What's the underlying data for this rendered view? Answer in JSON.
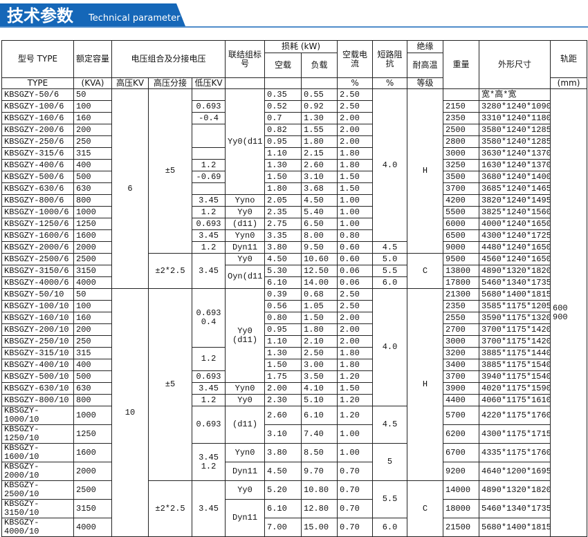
{
  "banner": {
    "title": "技术参数",
    "subtitle": "Technical parameter"
  },
  "table": {
    "header": {
      "type": "型号 TYPE",
      "capacity": "额定容量",
      "voltage": "电压组合及分接电压",
      "group": "联结组标号",
      "loss": "损耗 (kW)",
      "current": "空载电流",
      "impedance": "短路阻抗",
      "insulation": "绝缘",
      "weight": "重量",
      "dims": "外形尺寸",
      "gauge": "轨距",
      "noload": "空载",
      "load": "负载",
      "heat": "耐高温",
      "type2": "TYPE",
      "kva": "(KVA)",
      "hv": "高压KV",
      "tap": "高压分接",
      "lv": "低压KV",
      "pct1": "%",
      "pct2": "%",
      "grade": "等级",
      "mm": "(mm)"
    },
    "rows": [
      [
        "KBSGZY-50/6",
        "50",
        "0.35",
        "0.55",
        "2.50",
        null,
        "宽*高*宽"
      ],
      [
        "KBSGZY-100/6",
        "100",
        "0.52",
        "0.92",
        "2.50",
        "2150",
        "3280*1240*1090"
      ],
      [
        "KBSGZY-160/6",
        "160",
        "0.7",
        "1.30",
        "2.00",
        "2350",
        "3310*1240*1180"
      ],
      [
        "KBSGZY-200/6",
        "200",
        "0.82",
        "1.55",
        "2.00",
        "2500",
        "3580*1240*1285"
      ],
      [
        "KBSGZY-250/6",
        "250",
        "0.95",
        "1.80",
        "2.00",
        "2800",
        "3580*1240*1285"
      ],
      [
        "KBSGZY-315/6",
        "315",
        "1.10",
        "2.15",
        "1.80",
        "3000",
        "3630*1240*1370"
      ],
      [
        "KBSGZY-400/6",
        "400",
        "1.30",
        "2.60",
        "1.80",
        "3250",
        "1630*1240*1370"
      ],
      [
        "KBSGZY-500/6",
        "500",
        "1.50",
        "3.10",
        "1.50",
        "3500",
        "3680*1240*1400"
      ],
      [
        "KBSGZY-630/6",
        "630",
        "1.80",
        "3.68",
        "1.50",
        "3700",
        "3685*1240*1465"
      ],
      [
        "KBSGZY-800/6",
        "800",
        "2.05",
        "4.50",
        "1.00",
        "4200",
        "3820*1240*1495"
      ],
      [
        "KBSGZY-1000/6",
        "1000",
        "2.35",
        "5.40",
        "1.00",
        "5500",
        "3825*1240*1560"
      ],
      [
        "KBSGZY-1250/6",
        "1250",
        "2.75",
        "6.50",
        "1.00",
        "6000",
        "4000*1240*1650"
      ],
      [
        "KBSGZY-1600/6",
        "1600",
        "3.35",
        "8.00",
        "0.80",
        "6500",
        "4300*1240*1725"
      ],
      [
        "KBSGZY-2000/6",
        "2000",
        "3.80",
        "9.50",
        "0.60",
        "9000",
        "4480*1240*1650"
      ],
      [
        "KBSGZY-2500/6",
        "2500",
        "4.50",
        "10.60",
        "0.60",
        "9500",
        "4560*1240*1650"
      ],
      [
        "KBSGZY-3150/6",
        "3150",
        "5.30",
        "12.50",
        "0.06",
        "13800",
        "4890*1320*1820"
      ],
      [
        "KBSGZY-4000/6",
        "4000",
        "6.10",
        "14.00",
        "0.06",
        "17800",
        "5460*1340*1735"
      ],
      [
        "KBSGZY-50/10",
        "50",
        "0.39",
        "0.68",
        "2.50",
        "21300",
        "5680*1400*1815"
      ],
      [
        "KBSGZY-100/10",
        "100",
        "0.56",
        "1.05",
        "2.50",
        "2350",
        "3585*1175*1205"
      ],
      [
        "KBSGZY-160/10",
        "160",
        "0.80",
        "1.50",
        "2.00",
        "2550",
        "3590*1175*1320"
      ],
      [
        "KBSGZY-200/10",
        "200",
        "0.95",
        "1.80",
        "2.00",
        "2700",
        "3700*1175*1420"
      ],
      [
        "KBSGZY-250/10",
        "250",
        "1.10",
        "2.10",
        "2.00",
        "3000",
        "3700*1175*1420"
      ],
      [
        "KBSGZY-315/10",
        "315",
        "1.30",
        "2.50",
        "1.80",
        "3200",
        "3885*1175*1440"
      ],
      [
        "KBSGZY-400/10",
        "400",
        "1.50",
        "3.00",
        "1.80",
        "3400",
        "3885*1175*1540"
      ],
      [
        "KBSGZY-500/10",
        "500",
        "1.75",
        "3.50",
        "1.20",
        "3700",
        "3940*1175*1540"
      ],
      [
        "KBSGZY-630/10",
        "630",
        "2.00",
        "4.10",
        "1.50",
        "3900",
        "4020*1175*1590"
      ],
      [
        "KBSGZY-800/10",
        "800",
        "2.30",
        "5.10",
        "1.20",
        "4400",
        "4060*1175*1610"
      ],
      [
        "KBSGZY-1000/10",
        "1000",
        "2.60",
        "6.10",
        "1.20",
        "5700",
        "4220*1175*1760"
      ],
      [
        "KBSGZY-1250/10",
        "1250",
        "3.10",
        "7.40",
        "1.00",
        "6200",
        "4300*1175*1715"
      ],
      [
        "KBSGZY-1600/10",
        "1600",
        "3.80",
        "8.50",
        "1.00",
        "6700",
        "4335*1175*1760"
      ],
      [
        "KBSGZY-2000/10",
        "2000",
        "4.50",
        "9.70",
        "0.70",
        "9200",
        "4640*1200*1695"
      ],
      [
        "KBSGZY-2500/10",
        "2500",
        "5.20",
        "10.80",
        "0.70",
        "14000",
        "4890*1320*1820"
      ],
      [
        "KBSGZY-3150/10",
        "3150",
        "6.10",
        "12.80",
        "0.70",
        "18000",
        "5460*1340*1735"
      ],
      [
        "KBSGZY-4000/10",
        "4000",
        "7.00",
        "15.00",
        "0.70",
        "21500",
        "5680*1400*1815"
      ]
    ],
    "hv": [
      "6",
      "10"
    ],
    "tap": [
      "±5",
      "±2*2.5",
      "±5",
      "±2*2.5"
    ],
    "lv": [
      "0.693",
      "-0.4",
      "1.2",
      "-0.69",
      "3.45",
      "1.2",
      "0.693",
      "3.45",
      "1.2",
      "3.45",
      "0.693\n0.4",
      "1.2",
      "0.693",
      "3.45",
      "1.2",
      "0.693",
      "3.45\n1.2",
      "3.45"
    ],
    "group": [
      "Yy0(d11)",
      "Yyno",
      "Yy0",
      "(d11)",
      "Yyn0",
      "Dyn11",
      "Yy0",
      "Oyn(d11)",
      "Yy0 (d11)",
      "Yyn0",
      "Yy0",
      "(d11)",
      "Yyn0",
      "Dyn11",
      "Yy0",
      "Dyn11"
    ],
    "impedance": [
      "4.0",
      "4.5",
      "5.0",
      "5.5",
      "6.0",
      "4.0",
      "4.5",
      "5",
      "5.5",
      "6.0"
    ],
    "insulation": [
      "H",
      "C",
      "H",
      "C"
    ],
    "gauge": "600\n900"
  }
}
